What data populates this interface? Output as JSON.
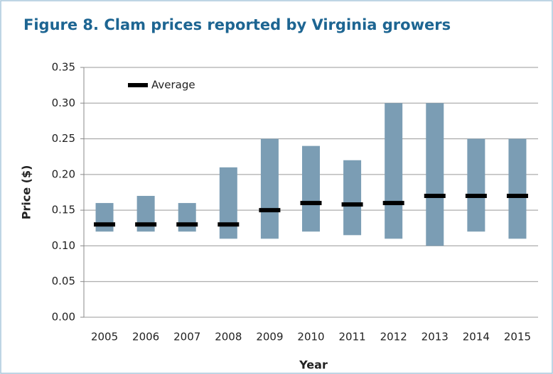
{
  "chart_data": {
    "type": "range-bar",
    "title": "Figure 8. Clam prices reported by Virginia growers",
    "xlabel": "Year",
    "ylabel": "Price ($)",
    "categories": [
      "2005",
      "2006",
      "2007",
      "2008",
      "2009",
      "2010",
      "2011",
      "2012",
      "2013",
      "2014",
      "2015"
    ],
    "ranges": {
      "color": "#7b9db4",
      "low": [
        0.12,
        0.12,
        0.12,
        0.11,
        0.11,
        0.12,
        0.115,
        0.11,
        0.1,
        0.12,
        0.11
      ],
      "high": [
        0.16,
        0.17,
        0.16,
        0.21,
        0.25,
        0.24,
        0.22,
        0.3,
        0.3,
        0.25,
        0.25
      ]
    },
    "series": [
      {
        "name": "Average",
        "color": "#000000",
        "values": [
          0.13,
          0.13,
          0.13,
          0.13,
          0.15,
          0.16,
          0.158,
          0.16,
          0.17,
          0.17,
          0.17
        ]
      }
    ],
    "ylim": [
      0,
      0.35
    ],
    "yticks": [
      {
        "value": 0,
        "label": "0.00"
      },
      {
        "value": 0.05,
        "label": "0.05"
      },
      {
        "value": 0.1,
        "label": "0.10"
      },
      {
        "value": 0.15,
        "label": "0.15"
      },
      {
        "value": 0.2,
        "label": "0.20"
      },
      {
        "value": 0.25,
        "label": "0.25"
      },
      {
        "value": 0.3,
        "label": "0.30"
      },
      {
        "value": 0.35,
        "label": "0.35"
      }
    ],
    "grid": true,
    "legend": "upper-left"
  }
}
